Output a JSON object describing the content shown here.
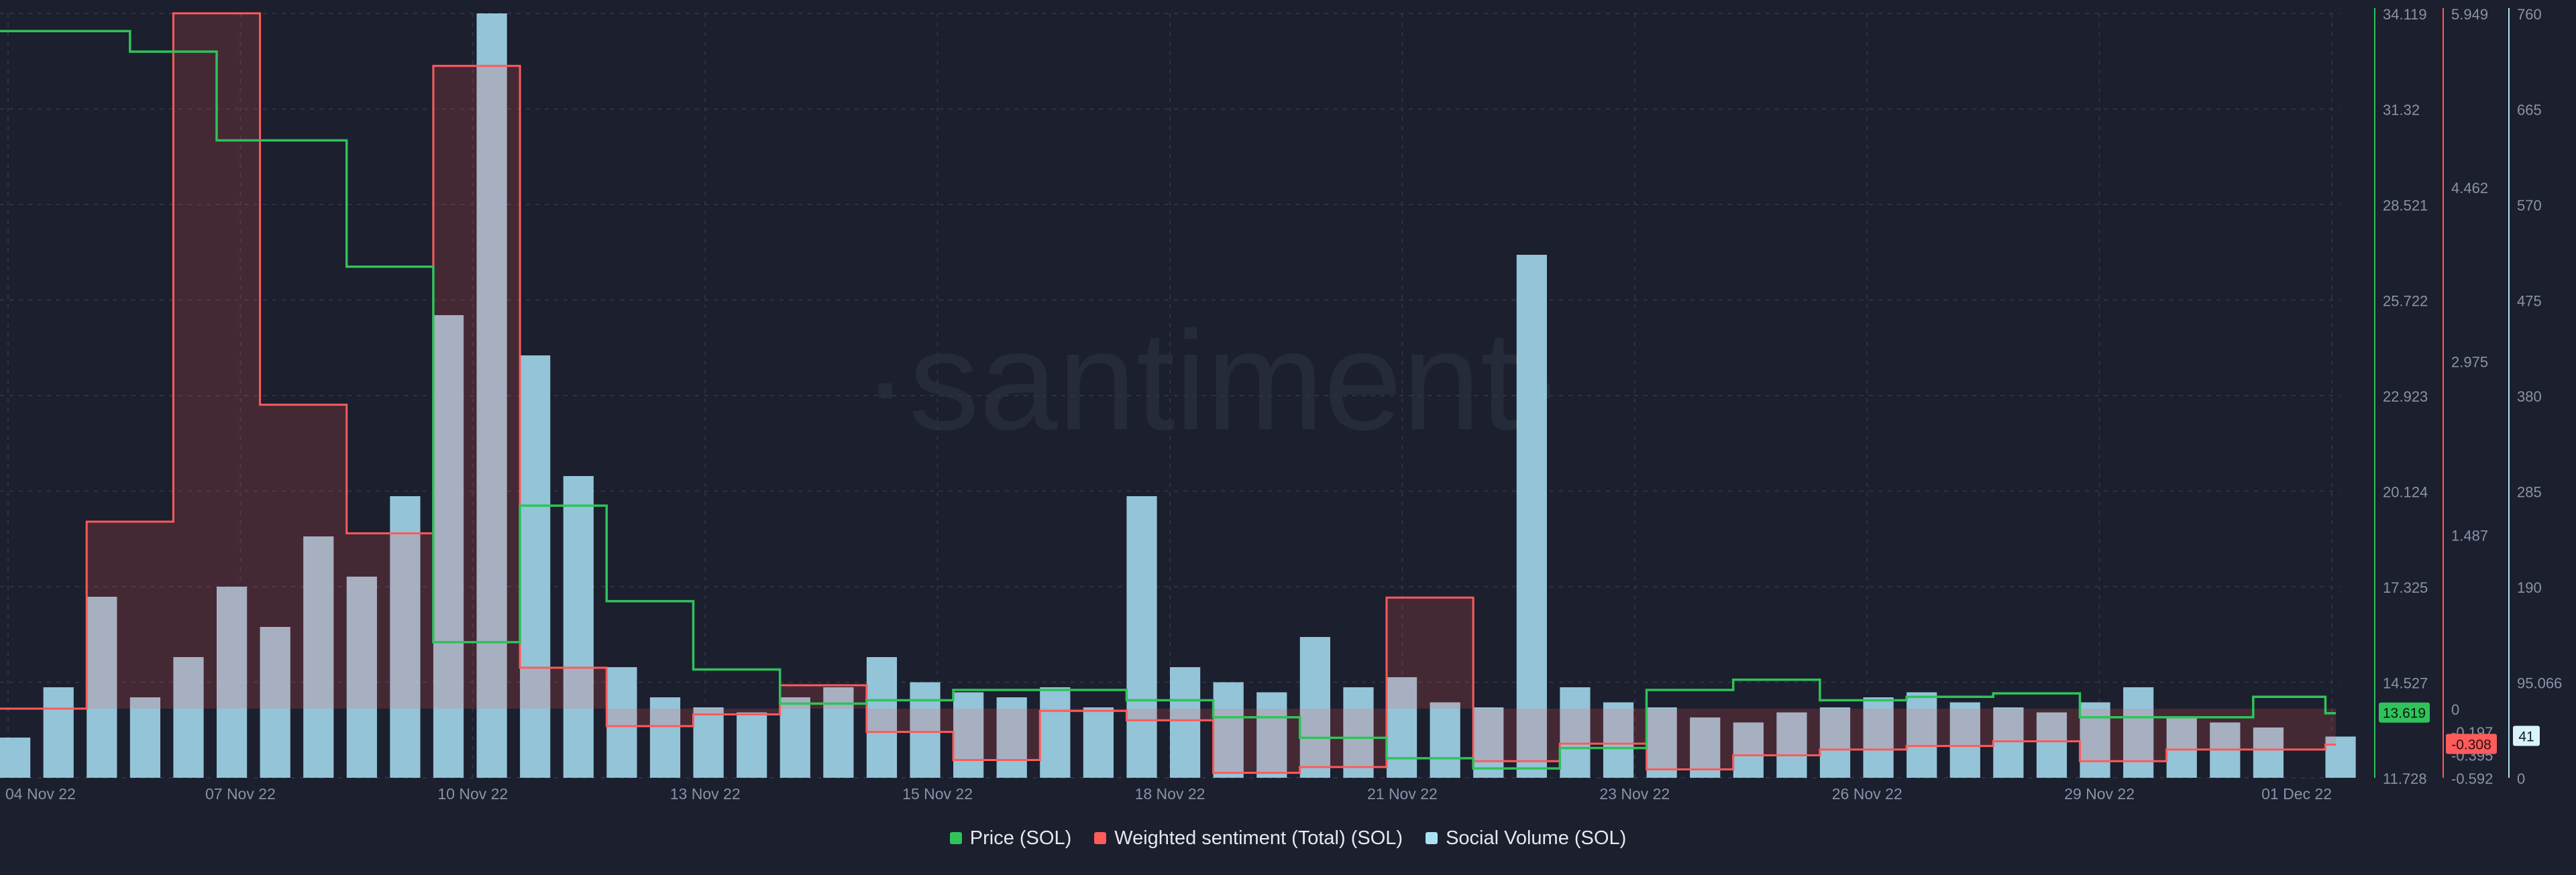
{
  "watermark": "·santiment·",
  "legend": [
    {
      "label": "Price (SOL)",
      "color": "#2fc35a"
    },
    {
      "label": "Weighted sentiment (Total) (SOL)",
      "color": "#ff5b5b"
    },
    {
      "label": "Social Volume (SOL)",
      "color": "#a9e2f5"
    }
  ],
  "chart_data": {
    "type": "line",
    "x_labels": [
      "04 Nov 22",
      "07 Nov 22",
      "10 Nov 22",
      "13 Nov 22",
      "15 Nov 22",
      "18 Nov 22",
      "21 Nov 22",
      "23 Nov 22",
      "26 Nov 22",
      "29 Nov 22",
      "01 Dec 22"
    ],
    "x_range": [
      "2022-11-04",
      "2022-12-01"
    ],
    "axes": {
      "price": {
        "ticks": [
          "34.119",
          "31.32",
          "28.521",
          "25.722",
          "22.923",
          "20.124",
          "17.325",
          "14.527",
          "11.728"
        ],
        "range": [
          11.728,
          34.119
        ],
        "current": "13.619"
      },
      "sentiment": {
        "ticks": [
          "5.949",
          "4.462",
          "2.975",
          "1.487",
          "0",
          "-0.197",
          "-0.395",
          "-0.592"
        ],
        "range": [
          -0.592,
          5.949
        ],
        "current": "-0.308"
      },
      "social_volume": {
        "ticks": [
          "760",
          "665",
          "570",
          "475",
          "380",
          "285",
          "190",
          "95.066",
          "0"
        ],
        "range": [
          0,
          760
        ],
        "current": "41"
      }
    },
    "series": [
      {
        "name": "Price (SOL)",
        "type": "step-line",
        "color": "#2fc35a",
        "points": [
          [
            "2022-11-04T00:00",
            33.6
          ],
          [
            "2022-11-05T12:00",
            33.0
          ],
          [
            "2022-11-06T12:00",
            30.4
          ],
          [
            "2022-11-08T00:00",
            26.7
          ],
          [
            "2022-11-09T00:00",
            15.7
          ],
          [
            "2022-11-10T00:00",
            19.7
          ],
          [
            "2022-11-11T00:00",
            16.9
          ],
          [
            "2022-11-12T00:00",
            14.9
          ],
          [
            "2022-11-13T00:00",
            13.9
          ],
          [
            "2022-11-14T00:00",
            14.0
          ],
          [
            "2022-11-15T00:00",
            14.3
          ],
          [
            "2022-11-16T00:00",
            14.3
          ],
          [
            "2022-11-17T00:00",
            14.0
          ],
          [
            "2022-11-18T00:00",
            13.5
          ],
          [
            "2022-11-19T00:00",
            12.9
          ],
          [
            "2022-11-20T00:00",
            12.3
          ],
          [
            "2022-11-21T00:00",
            12.0
          ],
          [
            "2022-11-22T00:00",
            12.6
          ],
          [
            "2022-11-23T00:00",
            14.3
          ],
          [
            "2022-11-24T00:00",
            14.6
          ],
          [
            "2022-11-25T00:00",
            14.0
          ],
          [
            "2022-11-26T00:00",
            14.1
          ],
          [
            "2022-11-27T00:00",
            14.2
          ],
          [
            "2022-11-28T00:00",
            13.5
          ],
          [
            "2022-11-29T00:00",
            13.5
          ],
          [
            "2022-11-30T00:00",
            14.1
          ],
          [
            "2022-11-30T20:00",
            13.619
          ]
        ]
      },
      {
        "name": "Weighted sentiment (Total) (SOL)",
        "type": "step-area",
        "color": "#ff5b5b",
        "points": [
          [
            "2022-11-04T00:00",
            0.0
          ],
          [
            "2022-11-05T00:00",
            1.6
          ],
          [
            "2022-11-06T00:00",
            5.95
          ],
          [
            "2022-11-07T00:00",
            2.6
          ],
          [
            "2022-11-08T00:00",
            1.5
          ],
          [
            "2022-11-09T00:00",
            5.5
          ],
          [
            "2022-11-10T00:00",
            0.35
          ],
          [
            "2022-11-11T00:00",
            -0.15
          ],
          [
            "2022-11-12T00:00",
            -0.05
          ],
          [
            "2022-11-13T00:00",
            0.2
          ],
          [
            "2022-11-14T00:00",
            -0.2
          ],
          [
            "2022-11-15T00:00",
            -0.44
          ],
          [
            "2022-11-16T00:00",
            -0.02
          ],
          [
            "2022-11-17T00:00",
            -0.1
          ],
          [
            "2022-11-18T00:00",
            -0.55
          ],
          [
            "2022-11-19T00:00",
            -0.5
          ],
          [
            "2022-11-20T00:00",
            0.95
          ],
          [
            "2022-11-21T00:00",
            -0.45
          ],
          [
            "2022-11-22T00:00",
            -0.3
          ],
          [
            "2022-11-23T00:00",
            -0.52
          ],
          [
            "2022-11-24T00:00",
            -0.4
          ],
          [
            "2022-11-25T00:00",
            -0.35
          ],
          [
            "2022-11-26T00:00",
            -0.32
          ],
          [
            "2022-11-27T00:00",
            -0.28
          ],
          [
            "2022-11-28T00:00",
            -0.45
          ],
          [
            "2022-11-29T00:00",
            -0.35
          ],
          [
            "2022-11-30T20:00",
            -0.308
          ]
        ]
      },
      {
        "name": "Social Volume (SOL)",
        "type": "bar",
        "color": "#a9e2f5",
        "points": [
          [
            "2022-11-04",
            40
          ],
          [
            "2022-11-04T12:00",
            90
          ],
          [
            "2022-11-05",
            180
          ],
          [
            "2022-11-05T12:00",
            80
          ],
          [
            "2022-11-06",
            120
          ],
          [
            "2022-11-06T12:00",
            190
          ],
          [
            "2022-11-07",
            150
          ],
          [
            "2022-11-07T12:00",
            240
          ],
          [
            "2022-11-08",
            200
          ],
          [
            "2022-11-08T12:00",
            280
          ],
          [
            "2022-11-09",
            460
          ],
          [
            "2022-11-09T12:00",
            760
          ],
          [
            "2022-11-10",
            420
          ],
          [
            "2022-11-10T12:00",
            300
          ],
          [
            "2022-11-11",
            110
          ],
          [
            "2022-11-11T12:00",
            80
          ],
          [
            "2022-11-12",
            70
          ],
          [
            "2022-11-12T12:00",
            65
          ],
          [
            "2022-11-13",
            80
          ],
          [
            "2022-11-13T12:00",
            90
          ],
          [
            "2022-11-14",
            120
          ],
          [
            "2022-11-14T12:00",
            95
          ],
          [
            "2022-11-15",
            85
          ],
          [
            "2022-11-15T12:00",
            80
          ],
          [
            "2022-11-16",
            90
          ],
          [
            "2022-11-16T12:00",
            70
          ],
          [
            "2022-11-17",
            280
          ],
          [
            "2022-11-17T12:00",
            110
          ],
          [
            "2022-11-18",
            95
          ],
          [
            "2022-11-18T12:00",
            85
          ],
          [
            "2022-11-19",
            140
          ],
          [
            "2022-11-19T12:00",
            90
          ],
          [
            "2022-11-20",
            100
          ],
          [
            "2022-11-20T12:00",
            75
          ],
          [
            "2022-11-21",
            70
          ],
          [
            "2022-11-21T12:00",
            520
          ],
          [
            "2022-11-22",
            90
          ],
          [
            "2022-11-22T12:00",
            75
          ],
          [
            "2022-11-23",
            70
          ],
          [
            "2022-11-23T12:00",
            60
          ],
          [
            "2022-11-24",
            55
          ],
          [
            "2022-11-24T12:00",
            65
          ],
          [
            "2022-11-25",
            70
          ],
          [
            "2022-11-25T12:00",
            80
          ],
          [
            "2022-11-26",
            85
          ],
          [
            "2022-11-26T12:00",
            75
          ],
          [
            "2022-11-27",
            70
          ],
          [
            "2022-11-27T12:00",
            65
          ],
          [
            "2022-11-28",
            75
          ],
          [
            "2022-11-28T12:00",
            90
          ],
          [
            "2022-11-29",
            60
          ],
          [
            "2022-11-29T12:00",
            55
          ],
          [
            "2022-11-30",
            50
          ],
          [
            "2022-11-30T20:00",
            41
          ]
        ]
      }
    ],
    "grid": true,
    "legend_position": "bottom-center"
  }
}
